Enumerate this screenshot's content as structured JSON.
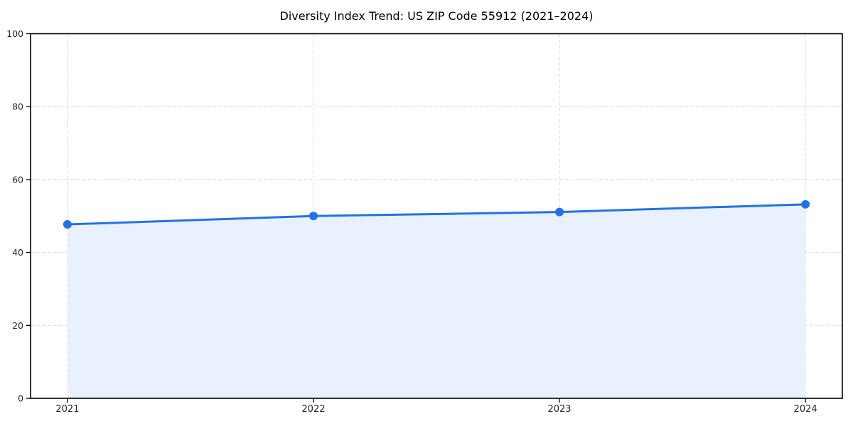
{
  "chart_data": {
    "type": "line",
    "title": "Diversity Index Trend: US ZIP Code 55912 (2021–2024)",
    "categories": [
      "2021",
      "2022",
      "2023",
      "2024"
    ],
    "series": [
      {
        "name": "Diversity Index",
        "values": [
          47.7,
          50.0,
          51.1,
          53.2
        ]
      }
    ],
    "xlabel": "",
    "ylabel": "",
    "ylim": [
      0,
      100
    ],
    "yticks": [
      0,
      20,
      40,
      60,
      80,
      100
    ],
    "grid": "dashed-both-axes",
    "legend": "none",
    "area_fill": true,
    "marker": "circle",
    "colors": {
      "line": "#2272e5",
      "marker": "#2272e5",
      "area_fill": "#e8f1fd",
      "grid": "#dcdcdc",
      "spine": "#000000",
      "tick_label": "#262626",
      "title": "#000000",
      "background": "#ffffff"
    }
  }
}
